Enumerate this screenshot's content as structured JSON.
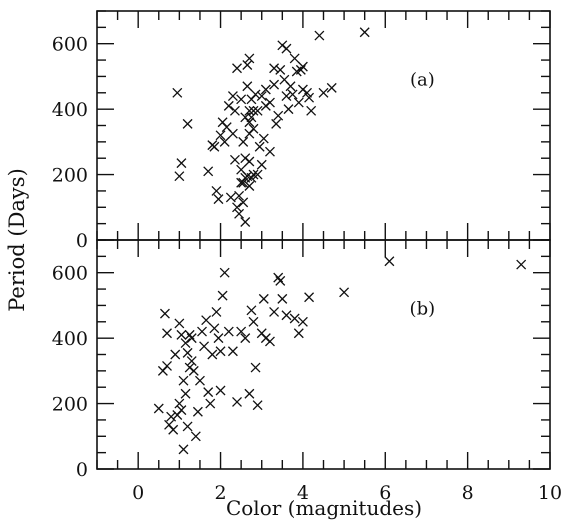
{
  "chart_data": {
    "type": "scatter",
    "xlabel": "Color (magnitudes)",
    "ylabel": "Period (Days)",
    "xlim": [
      -1,
      10
    ],
    "x_ticks": [
      0,
      2,
      4,
      6,
      8,
      10
    ],
    "grid": false,
    "marker": "x",
    "panels": [
      {
        "label": "(a)",
        "ylim": [
          0,
          700
        ],
        "y_ticks": [
          0,
          200,
          400,
          600
        ],
        "points": [
          [
            0.95,
            450
          ],
          [
            1.0,
            195
          ],
          [
            1.05,
            235
          ],
          [
            1.2,
            355
          ],
          [
            1.7,
            210
          ],
          [
            1.8,
            290
          ],
          [
            1.85,
            285
          ],
          [
            1.9,
            150
          ],
          [
            1.95,
            125
          ],
          [
            2.0,
            320
          ],
          [
            2.05,
            360
          ],
          [
            2.1,
            300
          ],
          [
            2.15,
            345
          ],
          [
            2.2,
            410
          ],
          [
            2.25,
            130
          ],
          [
            2.3,
            440
          ],
          [
            2.3,
            325
          ],
          [
            2.35,
            395
          ],
          [
            2.35,
            245
          ],
          [
            2.4,
            525
          ],
          [
            2.4,
            100
          ],
          [
            2.45,
            135
          ],
          [
            2.45,
            80
          ],
          [
            2.5,
            430
          ],
          [
            2.5,
            215
          ],
          [
            2.5,
            175
          ],
          [
            2.55,
            300
          ],
          [
            2.55,
            115
          ],
          [
            2.55,
            175
          ],
          [
            2.6,
            375
          ],
          [
            2.6,
            250
          ],
          [
            2.6,
            190
          ],
          [
            2.6,
            55
          ],
          [
            2.65,
            535
          ],
          [
            2.65,
            470
          ],
          [
            2.65,
            195
          ],
          [
            2.7,
            555
          ],
          [
            2.7,
            395
          ],
          [
            2.7,
            360
          ],
          [
            2.7,
            325
          ],
          [
            2.7,
            240
          ],
          [
            2.7,
            165
          ],
          [
            2.75,
            430
          ],
          [
            2.75,
            375
          ],
          [
            2.75,
            190
          ],
          [
            2.8,
            395
          ],
          [
            2.8,
            340
          ],
          [
            2.8,
            200
          ],
          [
            2.85,
            445
          ],
          [
            2.9,
            395
          ],
          [
            2.9,
            200
          ],
          [
            2.95,
            285
          ],
          [
            3.0,
            440
          ],
          [
            3.0,
            230
          ],
          [
            3.05,
            310
          ],
          [
            3.1,
            460
          ],
          [
            3.1,
            410
          ],
          [
            3.2,
            270
          ],
          [
            3.2,
            420
          ],
          [
            3.3,
            525
          ],
          [
            3.3,
            475
          ],
          [
            3.35,
            355
          ],
          [
            3.4,
            380
          ],
          [
            3.45,
            520
          ],
          [
            3.5,
            595
          ],
          [
            3.55,
            490
          ],
          [
            3.6,
            440
          ],
          [
            3.6,
            585
          ],
          [
            3.65,
            400
          ],
          [
            3.7,
            470
          ],
          [
            3.75,
            445
          ],
          [
            3.8,
            555
          ],
          [
            3.85,
            515
          ],
          [
            3.9,
            420
          ],
          [
            3.95,
            520
          ],
          [
            4.0,
            530
          ],
          [
            4.0,
            460
          ],
          [
            4.1,
            450
          ],
          [
            4.15,
            435
          ],
          [
            4.2,
            395
          ],
          [
            4.4,
            625
          ],
          [
            4.5,
            450
          ],
          [
            4.7,
            465
          ],
          [
            5.5,
            635
          ]
        ]
      },
      {
        "label": "(b)",
        "ylim": [
          0,
          700
        ],
        "y_ticks": [
          0,
          200,
          400,
          600
        ],
        "points": [
          [
            0.5,
            185
          ],
          [
            0.6,
            300
          ],
          [
            0.65,
            475
          ],
          [
            0.7,
            315
          ],
          [
            0.7,
            415
          ],
          [
            0.75,
            135
          ],
          [
            0.8,
            160
          ],
          [
            0.85,
            120
          ],
          [
            0.9,
            350
          ],
          [
            0.95,
            165
          ],
          [
            1.0,
            445
          ],
          [
            1.0,
            200
          ],
          [
            1.05,
            410
          ],
          [
            1.05,
            180
          ],
          [
            1.1,
            60
          ],
          [
            1.1,
            270
          ],
          [
            1.15,
            385
          ],
          [
            1.15,
            230
          ],
          [
            1.2,
            130
          ],
          [
            1.2,
            355
          ],
          [
            1.25,
            310
          ],
          [
            1.25,
            410
          ],
          [
            1.3,
            400
          ],
          [
            1.3,
            330
          ],
          [
            1.35,
            300
          ],
          [
            1.4,
            100
          ],
          [
            1.45,
            175
          ],
          [
            1.5,
            270
          ],
          [
            1.55,
            420
          ],
          [
            1.6,
            375
          ],
          [
            1.65,
            455
          ],
          [
            1.7,
            235
          ],
          [
            1.75,
            200
          ],
          [
            1.8,
            350
          ],
          [
            1.85,
            430
          ],
          [
            1.9,
            480
          ],
          [
            1.95,
            400
          ],
          [
            2.0,
            360
          ],
          [
            2.0,
            240
          ],
          [
            2.05,
            530
          ],
          [
            2.1,
            600
          ],
          [
            2.2,
            420
          ],
          [
            2.3,
            360
          ],
          [
            2.4,
            205
          ],
          [
            2.5,
            420
          ],
          [
            2.6,
            400
          ],
          [
            2.7,
            230
          ],
          [
            2.75,
            485
          ],
          [
            2.8,
            450
          ],
          [
            2.85,
            310
          ],
          [
            2.9,
            195
          ],
          [
            3.0,
            415
          ],
          [
            3.05,
            520
          ],
          [
            3.1,
            400
          ],
          [
            3.2,
            390
          ],
          [
            3.3,
            480
          ],
          [
            3.4,
            585
          ],
          [
            3.45,
            575
          ],
          [
            3.5,
            520
          ],
          [
            3.6,
            470
          ],
          [
            3.8,
            460
          ],
          [
            3.9,
            415
          ],
          [
            4.0,
            450
          ],
          [
            4.15,
            525
          ],
          [
            5.0,
            540
          ],
          [
            6.1,
            635
          ],
          [
            9.3,
            625
          ]
        ]
      }
    ]
  }
}
